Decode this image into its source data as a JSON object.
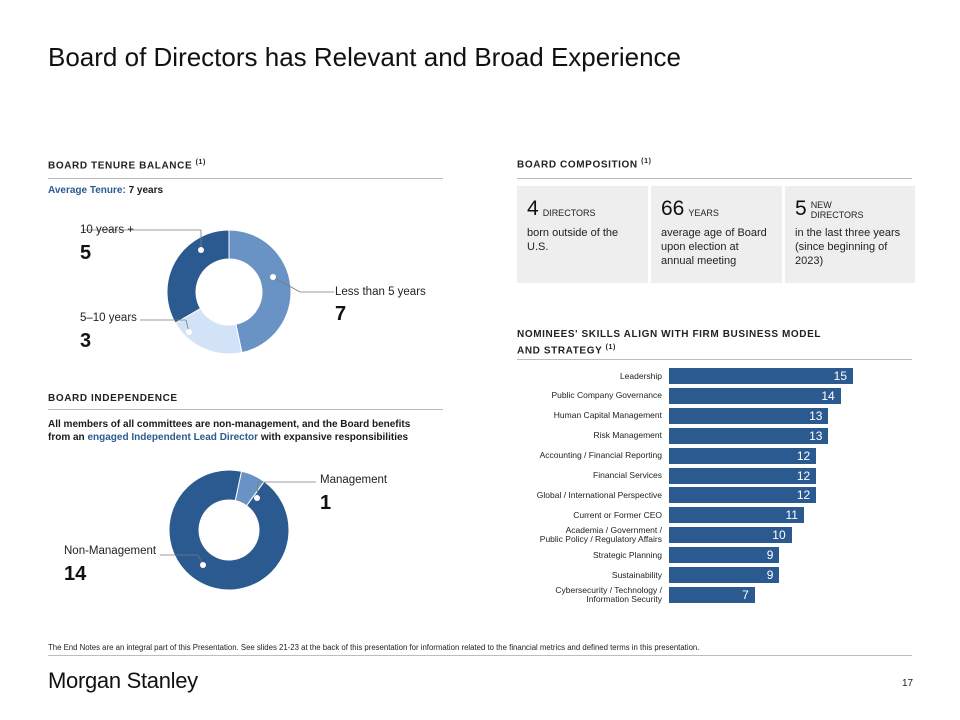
{
  "title": "Board of Directors has Relevant and Broad Experience",
  "tenure": {
    "heading": "BOARD TENURE BALANCE",
    "sup": "(1)",
    "avg_label": "Average Tenure:",
    "avg_value": "7 years",
    "segments": [
      {
        "label": "Less than 5 years",
        "value": 7,
        "color": "#6a93c5"
      },
      {
        "label": "5–10 years",
        "value": 3,
        "color": "#d3e3f7"
      },
      {
        "label": "10 years +",
        "value": 5,
        "color": "#2b5a91"
      }
    ]
  },
  "independence": {
    "heading": "BOARD INDEPENDENCE",
    "text_1": "All members of all committees are non-management, and the Board benefits",
    "text_2a": "from an",
    "text_2_link": "engaged Independent Lead Director",
    "text_2b": "with expansive responsibilities",
    "segments": [
      {
        "label": "Management",
        "value": 1,
        "color": "#6a93c5"
      },
      {
        "label": "Non-Management",
        "value": 14,
        "color": "#2b5a91"
      }
    ]
  },
  "composition": {
    "heading": "BOARD COMPOSITION",
    "sup": "(1)",
    "boxes": [
      {
        "number": "4",
        "unit": "DIRECTORS",
        "desc": "born outside of the U.S."
      },
      {
        "number": "66",
        "unit": "YEARS",
        "desc": "average age of Board upon election at annual meeting"
      },
      {
        "number": "5",
        "unit_1": "NEW",
        "unit_2": "DIRECTORS",
        "desc": "in the last three years (since beginning of 2023)"
      }
    ]
  },
  "skills": {
    "heading_1": "NOMINEES' SKILLS ALIGN WITH FIRM BUSINESS MODEL",
    "heading_2": "AND STRATEGY",
    "sup": "(1)"
  },
  "chart_data": {
    "type": "bar",
    "orientation": "horizontal",
    "title": "NOMINEES' SKILLS ALIGN WITH FIRM BUSINESS MODEL AND STRATEGY",
    "bar_color": "#2b5a91",
    "xlim": [
      0,
      15
    ],
    "categories": [
      [
        "Leadership"
      ],
      [
        "Public Company Governance"
      ],
      [
        "Human Capital Management"
      ],
      [
        "Risk Management"
      ],
      [
        "Accounting / Financial Reporting"
      ],
      [
        "Financial Services"
      ],
      [
        "Global / International Perspective"
      ],
      [
        "Current or Former CEO"
      ],
      [
        "Academia / Government /",
        "Public Policy / Regulatory Affairs"
      ],
      [
        "Strategic Planning"
      ],
      [
        "Sustainability"
      ],
      [
        "Cybersecurity / Technology /",
        "Information Security"
      ]
    ],
    "values": [
      15,
      14,
      13,
      13,
      12,
      12,
      12,
      11,
      10,
      9,
      9,
      7
    ]
  },
  "footnote": "The End Notes are an integral part of this Presentation. See slides 21-23 at the back of this presentation for information related to the financial metrics and defined terms in this presentation.",
  "logo": "Morgan Stanley",
  "page_number": "17"
}
